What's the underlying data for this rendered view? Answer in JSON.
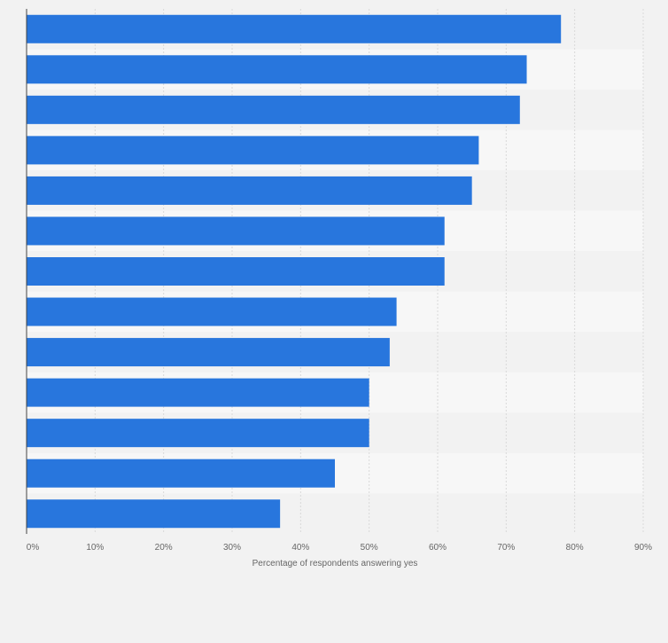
{
  "chart_data": {
    "type": "bar",
    "orientation": "horizontal",
    "categories": [
      "",
      "",
      "",
      "",
      "",
      "",
      "",
      "",
      "",
      "",
      "",
      "",
      ""
    ],
    "values": [
      78,
      73,
      72,
      66,
      65,
      61,
      61,
      54,
      53,
      50,
      50,
      45,
      37
    ],
    "title": "",
    "xlabel": "Percentage of respondents answering yes",
    "ylabel": "",
    "xlim": [
      0,
      90
    ],
    "xticks": [
      0,
      10,
      20,
      30,
      40,
      50,
      60,
      70,
      80,
      90
    ],
    "xtick_labels": [
      "0%",
      "10%",
      "20%",
      "30%",
      "40%",
      "50%",
      "60%",
      "70%",
      "80%",
      "90%"
    ],
    "grid": true,
    "legend": "none"
  },
  "colors": {
    "bar": "#2876dd",
    "band_light": "#f7f7f7",
    "band_dark": "#f2f2f2",
    "background": "#f2f2f2",
    "grid": "#d9d9d9",
    "axis": "#444444",
    "tick_text": "#666666"
  }
}
